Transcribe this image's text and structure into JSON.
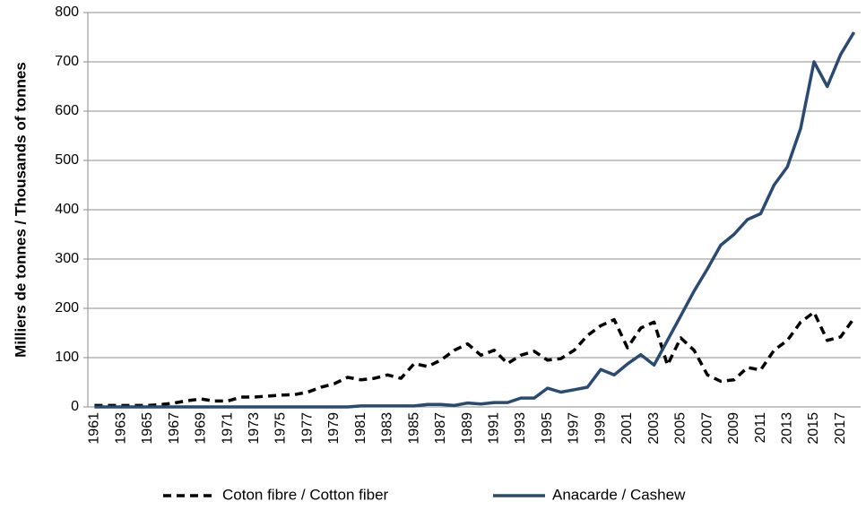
{
  "chart_data": {
    "type": "line",
    "y_label": "Milliers de tonnes / Thousands of tonnes",
    "categories": [
      "1961",
      null,
      "1963",
      null,
      "1965",
      null,
      "1967",
      null,
      "1969",
      null,
      "1971",
      null,
      "1973",
      null,
      "1975",
      null,
      "1977",
      null,
      "1979",
      null,
      "1981",
      null,
      "1983",
      null,
      "1985",
      null,
      "1987",
      null,
      "1989",
      null,
      "1991",
      null,
      "1993",
      null,
      "1995",
      null,
      "1997",
      null,
      "1999",
      null,
      "2001",
      null,
      "2003",
      null,
      "2005",
      null,
      "2007",
      null,
      "2009",
      null,
      "2011",
      null,
      "2013",
      null,
      "2015",
      null,
      "2017",
      null
    ],
    "series": [
      {
        "name": "Coton fibre / Cotton fiber",
        "color": "#000000",
        "dash": true,
        "values": [
          3,
          3,
          3,
          3,
          3,
          5,
          8,
          13,
          16,
          12,
          12,
          20,
          20,
          22,
          24,
          25,
          30,
          40,
          47,
          60,
          55,
          58,
          65,
          58,
          88,
          82,
          95,
          115,
          128,
          105,
          115,
          88,
          105,
          113,
          95,
          98,
          115,
          145,
          165,
          177,
          120,
          160,
          172,
          85,
          140,
          115,
          65,
          52,
          55,
          80,
          75,
          115,
          135,
          172,
          192,
          135,
          142,
          180
        ]
      },
      {
        "name": "Anacarde / Cashew",
        "color": "#2a4a72",
        "dash": false,
        "values": [
          0,
          0,
          0,
          0,
          0,
          0,
          0,
          0,
          0,
          0,
          0,
          0,
          0,
          0,
          0,
          0,
          0,
          0,
          0,
          0,
          2,
          2,
          2,
          2,
          2,
          5,
          5,
          3,
          8,
          6,
          9,
          9,
          18,
          18,
          38,
          30,
          35,
          40,
          76,
          65,
          87,
          106,
          85,
          135,
          185,
          235,
          280,
          328,
          350,
          380,
          392,
          450,
          487,
          565,
          700,
          650,
          715,
          760
        ]
      }
    ],
    "ylim": [
      0,
      800
    ],
    "yticks": [
      0,
      100,
      200,
      300,
      400,
      500,
      600,
      700,
      800
    ],
    "grid": true
  }
}
